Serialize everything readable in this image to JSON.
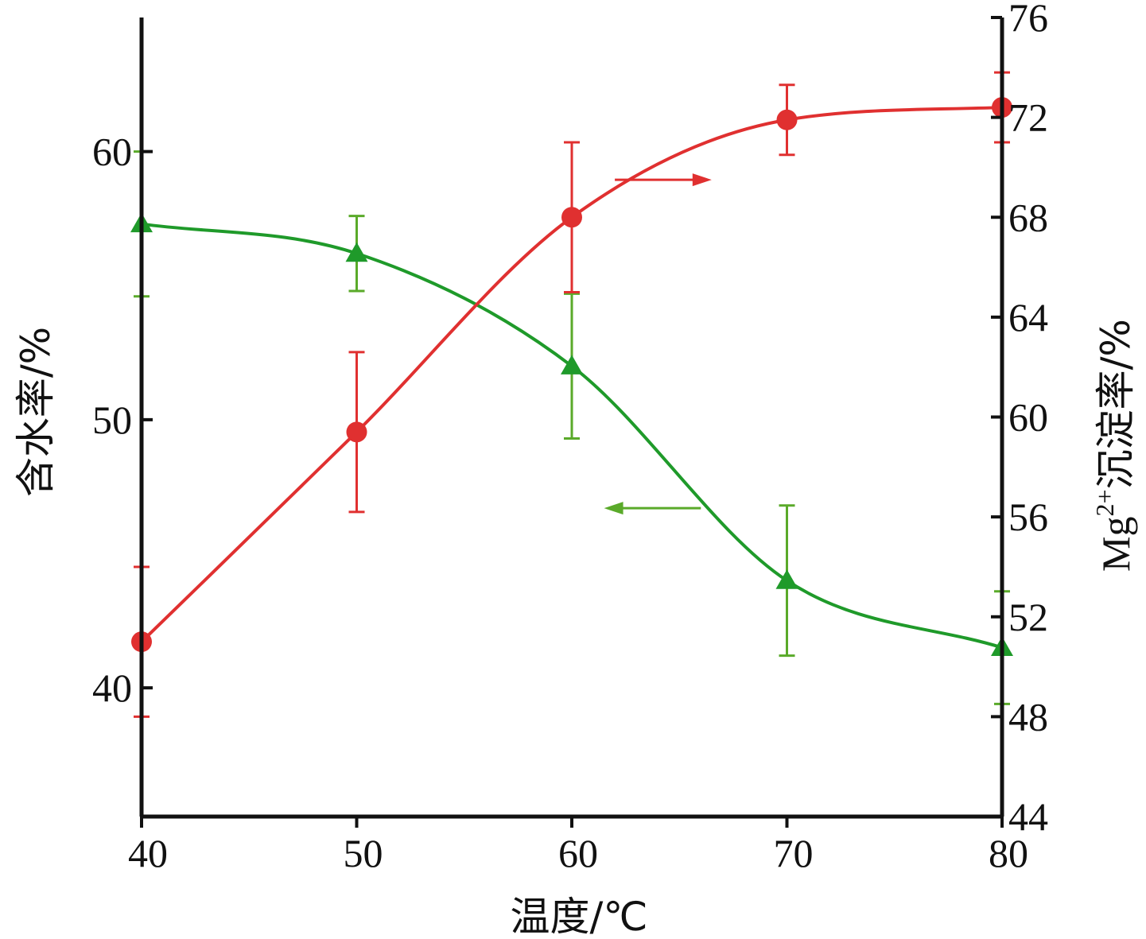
{
  "chart_data": {
    "type": "line",
    "xlabel": "温度/℃",
    "ylabel_left": "含水率/%",
    "ylabel_right": "Mg2+沉淀率/%",
    "ylabel_right_parts": {
      "base": "Mg",
      "sup": "2+",
      "rest": "沉淀率/%"
    },
    "x": [
      40,
      50,
      60,
      70,
      80
    ],
    "xlim": [
      40,
      80
    ],
    "xticks": [
      "40",
      "50",
      "60",
      "70",
      "80"
    ],
    "ylim_left": [
      35.2,
      65
    ],
    "yticks_left": [
      "40",
      "50",
      "60"
    ],
    "ylim_right": [
      44,
      76
    ],
    "yticks_right": [
      "44",
      "48",
      "52",
      "56",
      "60",
      "64",
      "68",
      "72",
      "76"
    ],
    "grid": false,
    "series": [
      {
        "axis": "left",
        "marker": "triangle",
        "color": "#1f9a2a",
        "errcolor": "#5aaa2a",
        "values": [
          57.3,
          56.2,
          52.0,
          44.0,
          41.5
        ],
        "err": [
          2.7,
          1.4,
          2.7,
          2.8,
          2.1
        ],
        "arrow": "left"
      },
      {
        "axis": "right",
        "marker": "circle",
        "color": "#e03030",
        "errcolor": "#e03030",
        "values": [
          51.0,
          59.4,
          68.0,
          71.9,
          72.4
        ],
        "err": [
          3.0,
          3.2,
          3.0,
          1.4,
          1.4
        ],
        "arrow": "right"
      }
    ]
  }
}
